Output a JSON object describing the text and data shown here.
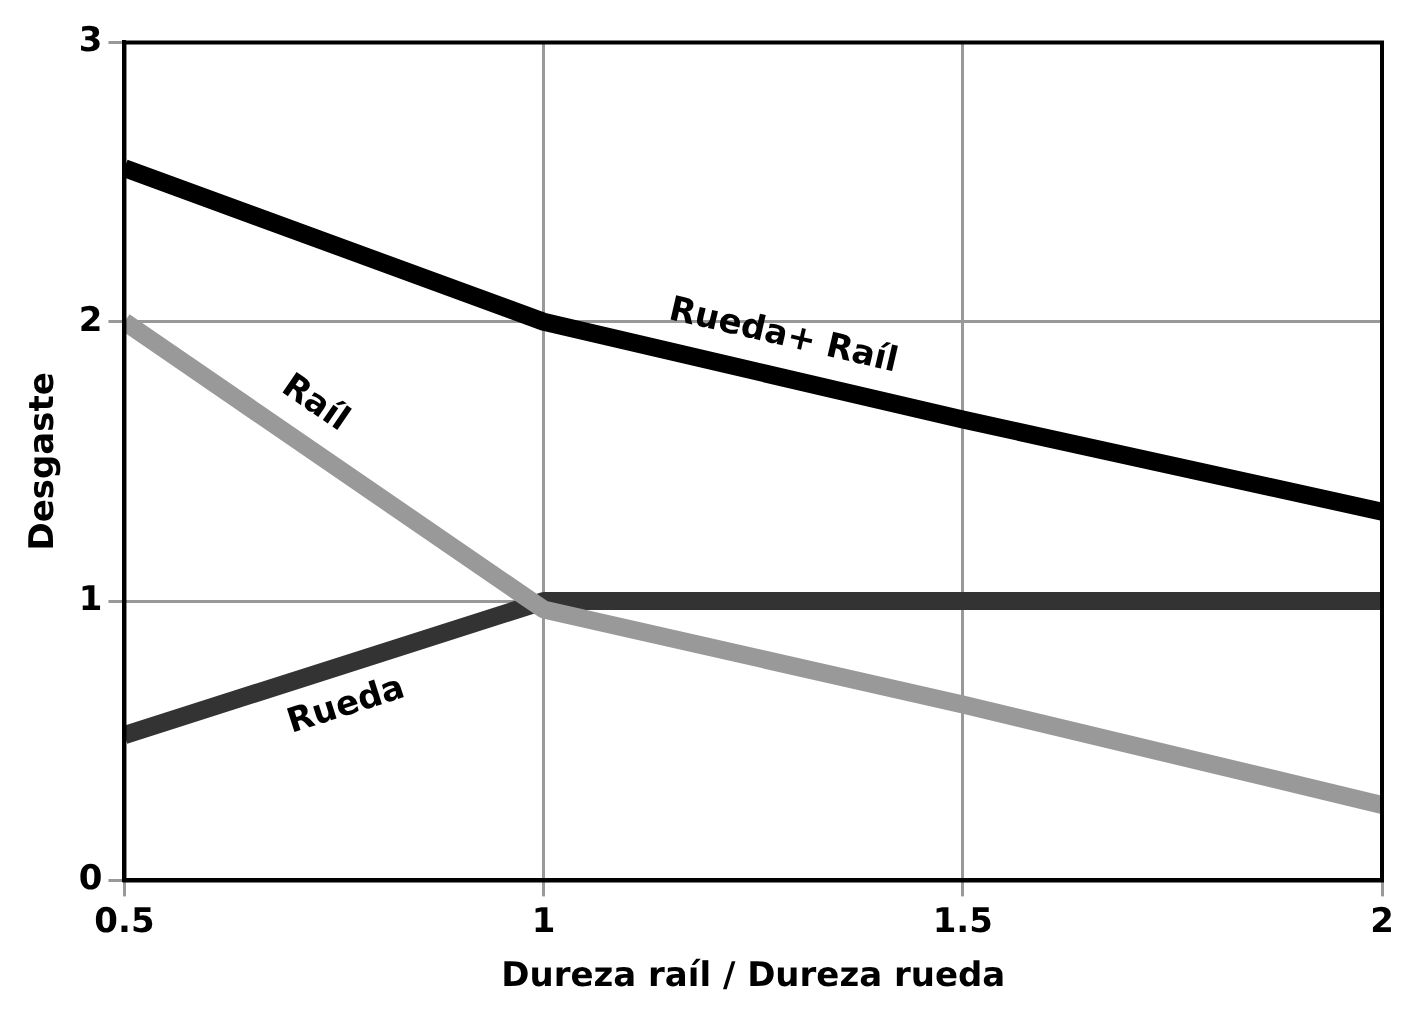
{
  "chart_data": {
    "type": "line",
    "xlabel": "Dureza raíl / Dureza rueda",
    "ylabel": "Desgaste",
    "xlim": [
      0.5,
      2
    ],
    "xticks": [
      0.5,
      1,
      1.5,
      2
    ],
    "ylim": [
      0,
      3
    ],
    "yticks": [
      0,
      1,
      2,
      3
    ],
    "grid": true,
    "legend": false,
    "marker": "none",
    "line_style": "solid",
    "series": [
      {
        "name": "Rueda+ Raíl",
        "color": "#000000",
        "x": [
          0.5,
          1,
          1.5,
          2
        ],
        "values": [
          2.55,
          2.0,
          1.65,
          1.32
        ]
      },
      {
        "name": "Raíl",
        "color": "#999999",
        "x": [
          0.5,
          1,
          1.5,
          2
        ],
        "values": [
          2.0,
          0.97,
          0.63,
          0.27
        ]
      },
      {
        "name": "Rueda",
        "color": "#333333",
        "x": [
          0.5,
          1,
          2
        ],
        "values": [
          0.52,
          1.0,
          1.0
        ]
      }
    ]
  }
}
